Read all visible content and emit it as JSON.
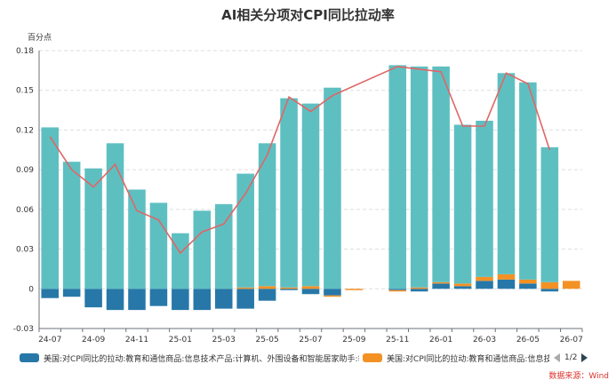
{
  "chart_data": {
    "type": "bar",
    "title": "AI相关分项对CPI同比拉动率",
    "ylabel": "百分点",
    "ylim": [
      -0.03,
      0.18
    ],
    "yticks": [
      "-0.03",
      "0",
      "0.03",
      "0.06",
      "0.09",
      "0.12",
      "0.15",
      "0.18"
    ],
    "ytick_values": [
      -0.03,
      0,
      0.03,
      0.06,
      0.09,
      0.12,
      0.15,
      0.18
    ],
    "categories": [
      "24-07",
      "24-08",
      "24-09",
      "24-10",
      "24-11",
      "24-12",
      "25-01",
      "25-02",
      "25-03",
      "25-04",
      "25-05",
      "25-06",
      "25-07",
      "25-08",
      "25-09",
      "25-10",
      "25-11",
      "25-12",
      "26-01",
      "26-02",
      "26-03",
      "26-04",
      "26-05",
      "26-06",
      "26-07"
    ],
    "xtick_labels": [
      "24-07",
      "24-09",
      "24-11",
      "25-01",
      "25-03",
      "25-05",
      "25-07",
      "25-09",
      "25-11",
      "26-01",
      "26-03",
      "26-05",
      "26-07"
    ],
    "grid": true,
    "legend_position": "bottom",
    "series": [
      {
        "name": "美国:对CPI同比的拉动:教育和通信商品:信息技术产品:计算机、外围设备和智能居家助手:季调",
        "color": "#2778a8",
        "kind": "bar",
        "values": [
          -0.007,
          -0.006,
          -0.014,
          -0.016,
          -0.016,
          -0.013,
          -0.016,
          -0.016,
          -0.015,
          -0.015,
          -0.009,
          -0.001,
          -0.004,
          -0.005,
          0.0,
          null,
          -0.001,
          -0.002,
          0.004,
          0.002,
          0.006,
          0.007,
          0.004,
          -0.002,
          0.0
        ]
      },
      {
        "name": "美国:对CPI同比的拉动:教育和通信商品:信息技术产品",
        "color": "#f39125",
        "kind": "bar",
        "values": [
          0.0,
          0.0,
          0.0,
          0.0,
          0.0,
          0.0,
          0.0,
          0.0,
          0.0,
          0.001,
          0.002,
          0.001,
          0.002,
          -0.001,
          -0.001,
          null,
          -0.001,
          0.001,
          0.001,
          0.002,
          0.003,
          0.004,
          0.003,
          0.005,
          0.006
        ]
      },
      {
        "name": "",
        "color": "#5ebfc1",
        "kind": "bar",
        "values": [
          0.122,
          0.096,
          0.091,
          0.11,
          0.075,
          0.065,
          0.042,
          0.059,
          0.064,
          0.086,
          0.108,
          0.143,
          0.138,
          0.152,
          null,
          null,
          0.169,
          0.167,
          0.163,
          0.12,
          0.118,
          0.152,
          0.149,
          0.102,
          null
        ]
      },
      {
        "name": "",
        "color": "#e06666",
        "kind": "line",
        "values": [
          0.115,
          0.09,
          0.077,
          0.094,
          0.059,
          0.052,
          0.027,
          0.043,
          0.049,
          0.072,
          0.101,
          0.145,
          0.134,
          0.146,
          null,
          null,
          0.168,
          0.166,
          0.164,
          0.123,
          0.123,
          0.163,
          0.155,
          0.105,
          null
        ]
      }
    ]
  },
  "pager": {
    "text": "1/2"
  },
  "source": "数据来源：Wind"
}
